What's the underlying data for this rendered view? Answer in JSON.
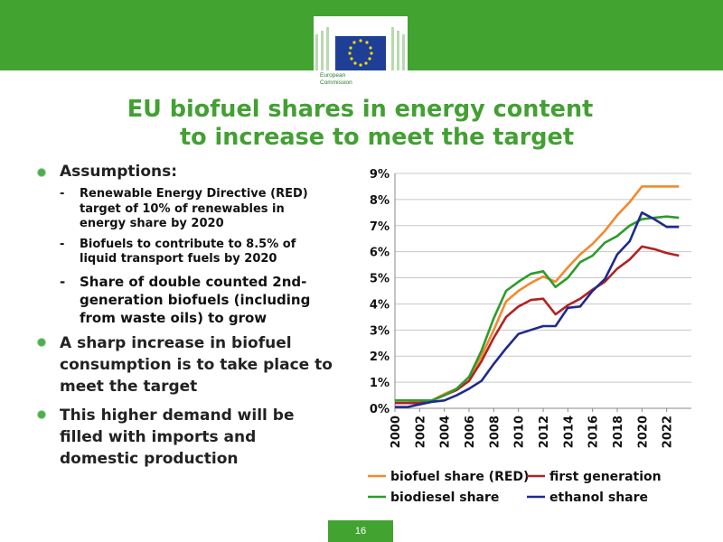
{
  "header": {
    "logo_text_line1": "European",
    "logo_text_line2": "Commission"
  },
  "slide": {
    "title_line1": "EU biofuel shares in energy content",
    "title_line2": "to increase to meet the target"
  },
  "bullets": {
    "assumptions_label": "Assumptions:",
    "sub1": "Renewable Energy Directive (RED) target of 10% of renewables in energy share by 2020",
    "sub2": "Biofuels to contribute to 8.5% of liquid transport fuels by 2020",
    "sub3": "Share of double counted 2nd-generation biofuels (including from waste oils) to grow",
    "bullet2": "A sharp increase in biofuel consumption is to take place to meet the target",
    "bullet3": "This higher demand will be filled with imports and domestic production"
  },
  "footer": {
    "page_number": "16"
  },
  "colors": {
    "green": "#42a331",
    "biofuel": "#f28a2e",
    "first_gen": "#b22222",
    "biodiesel": "#2e9a2e",
    "ethanol": "#1f2a8c"
  },
  "chart_data": {
    "type": "line",
    "title": "",
    "xlabel": "",
    "ylabel": "",
    "x": [
      2000,
      2001,
      2002,
      2003,
      2004,
      2005,
      2006,
      2007,
      2008,
      2009,
      2010,
      2011,
      2012,
      2013,
      2014,
      2015,
      2016,
      2017,
      2018,
      2019,
      2020,
      2021,
      2022,
      2023
    ],
    "x_tick_labels": [
      "2000",
      "2002",
      "2004",
      "2006",
      "2008",
      "2010",
      "2012",
      "2014",
      "2016",
      "2018",
      "2020",
      "2022"
    ],
    "y_tick_labels": [
      "0%",
      "1%",
      "2%",
      "3%",
      "4%",
      "5%",
      "6%",
      "7%",
      "8%",
      "9%"
    ],
    "ylim": [
      0,
      9
    ],
    "grid": "horizontal",
    "legend_position": "bottom",
    "series": [
      {
        "name": "biofuel share (RED)",
        "color": "#f28a2e",
        "values": [
          0.2,
          0.2,
          0.25,
          0.3,
          0.55,
          0.75,
          1.2,
          2.0,
          3.0,
          4.1,
          4.5,
          4.8,
          5.05,
          4.85,
          5.4,
          5.9,
          6.3,
          6.8,
          7.4,
          7.9,
          8.5,
          8.5,
          8.5,
          8.5
        ]
      },
      {
        "name": "first generation",
        "color": "#b22222",
        "values": [
          0.2,
          0.2,
          0.2,
          0.3,
          0.5,
          0.7,
          1.05,
          1.8,
          2.7,
          3.5,
          3.9,
          4.15,
          4.2,
          3.6,
          3.95,
          4.2,
          4.55,
          4.85,
          5.35,
          5.7,
          6.2,
          6.1,
          5.95,
          5.85
        ]
      },
      {
        "name": "biodiesel share",
        "color": "#2e9a2e",
        "values": [
          0.3,
          0.3,
          0.3,
          0.3,
          0.5,
          0.75,
          1.2,
          2.2,
          3.45,
          4.5,
          4.85,
          5.15,
          5.25,
          4.65,
          5.0,
          5.6,
          5.85,
          6.35,
          6.6,
          7.0,
          7.25,
          7.3,
          7.35,
          7.3
        ]
      },
      {
        "name": "ethanol share",
        "color": "#1f2a8c",
        "values": [
          0.05,
          0.05,
          0.15,
          0.25,
          0.3,
          0.5,
          0.75,
          1.05,
          1.7,
          2.3,
          2.85,
          3.0,
          3.15,
          3.15,
          3.85,
          3.9,
          4.5,
          4.95,
          5.9,
          6.4,
          7.5,
          7.25,
          6.95,
          6.95
        ]
      }
    ]
  }
}
